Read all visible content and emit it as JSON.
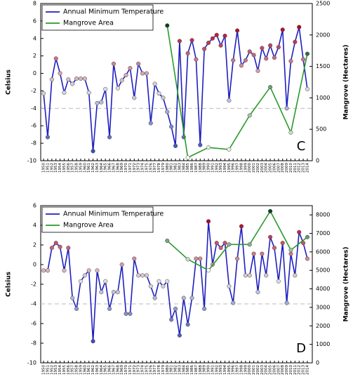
{
  "chart_data": [
    {
      "type": "line",
      "panel_label": "C",
      "ylabel": "Celsius",
      "y2label": "Mangrove (Hectares)",
      "x": [
        1950,
        1951,
        1952,
        1953,
        1954,
        1955,
        1956,
        1957,
        1958,
        1959,
        1960,
        1961,
        1962,
        1963,
        1964,
        1965,
        1966,
        1967,
        1968,
        1969,
        1970,
        1971,
        1972,
        1973,
        1974,
        1975,
        1976,
        1977,
        1978,
        1979,
        1980,
        1981,
        1982,
        1983,
        1984,
        1985,
        1986,
        1987,
        1988,
        1989,
        1990,
        1991,
        1992,
        1993,
        1994,
        1995,
        1996,
        1997,
        1998,
        1999,
        2000,
        2001,
        2002,
        2003,
        2004,
        2005,
        2006,
        2007,
        2008,
        2009,
        2010,
        2011,
        2012,
        2013,
        2014
      ],
      "xlim": [
        1949.3,
        2015.2
      ],
      "ylim": [
        -10,
        8
      ],
      "yticks": [
        -10,
        -8,
        -6,
        -4,
        -2,
        0,
        2,
        4,
        6,
        8
      ],
      "y2lim": [
        0,
        2500
      ],
      "y2ticks": [
        0,
        500,
        1000,
        1500,
        2000,
        2500
      ],
      "hline": -4,
      "legend": "upper left",
      "series": [
        {
          "name": "Annual Minimum Temperature",
          "color": "#1f1fbf",
          "marker_colormap": "coolwarm",
          "values": [
            -2.3,
            -7.3,
            -0.7,
            1.7,
            0,
            -2.2,
            -0.7,
            -1.2,
            -0.6,
            -0.6,
            -0.6,
            -2.2,
            -8.9,
            -3.4,
            -3.3,
            -1.8,
            -7.3,
            1.1,
            -1.7,
            -0.8,
            -0.2,
            0.6,
            -2.8,
            1.1,
            0,
            0,
            -5.7,
            -1.2,
            -2.3,
            -2.8,
            -4.4,
            -6.1,
            -8.3,
            3.7,
            -7.3,
            2.3,
            3.8,
            1.6,
            -8.2,
            2.8,
            3.5,
            4.0,
            4.4,
            3.2,
            4.3,
            -3.1,
            1.5,
            4.9,
            0.9,
            1.5,
            2.5,
            2.1,
            0.3,
            2.9,
            1.7,
            3.2,
            1.8,
            3.0,
            5.0,
            -4.0,
            1.4,
            3.6,
            5.3,
            1.6,
            -1.8
          ]
        },
        {
          "name": "Mangrove Area",
          "color": "#2a9a2a",
          "axis": "y2",
          "marker_colormap": "greens",
          "x": [
            1980,
            1985,
            1990,
            1995,
            2000,
            2005,
            2010,
            2014
          ],
          "values": [
            2150,
            50,
            210,
            180,
            720,
            1170,
            450,
            1700
          ]
        }
      ]
    },
    {
      "type": "line",
      "panel_label": "D",
      "ylabel": "Celsius",
      "y2label": "Mangrove (Hectares)",
      "x": [
        1950,
        1951,
        1952,
        1953,
        1954,
        1955,
        1956,
        1957,
        1958,
        1959,
        1960,
        1961,
        1962,
        1963,
        1964,
        1965,
        1966,
        1967,
        1968,
        1969,
        1970,
        1971,
        1972,
        1973,
        1974,
        1975,
        1976,
        1977,
        1978,
        1979,
        1980,
        1981,
        1982,
        1983,
        1984,
        1985,
        1986,
        1987,
        1988,
        1989,
        1990,
        1991,
        1992,
        1993,
        1994,
        1995,
        1996,
        1997,
        1998,
        1999,
        2000,
        2001,
        2002,
        2003,
        2004,
        2005,
        2006,
        2007,
        2008,
        2009,
        2010,
        2011,
        2012,
        2013,
        2014
      ],
      "xlim": [
        1949.3,
        2015.2
      ],
      "ylim": [
        -10,
        6
      ],
      "yticks": [
        -10,
        -8,
        -6,
        -4,
        -2,
        0,
        2,
        4,
        6
      ],
      "y2lim": [
        0,
        8500
      ],
      "y2ticks": [
        0,
        1000,
        2000,
        3000,
        4000,
        5000,
        6000,
        7000,
        8000
      ],
      "hline": -4,
      "legend": "upper left",
      "series": [
        {
          "name": "Annual Minimum Temperature",
          "color": "#1f1fbf",
          "marker_colormap": "coolwarm",
          "values": [
            -0.6,
            -0.6,
            1.7,
            2.2,
            1.8,
            -0.6,
            1.7,
            -3.4,
            -4.5,
            -1.7,
            -1.1,
            -0.6,
            -7.8,
            -0.6,
            -2.8,
            -1.7,
            -4.5,
            -2.8,
            -2.8,
            0,
            -5.0,
            -5.0,
            0.6,
            -1.1,
            -1.1,
            -1.1,
            -2.2,
            -3.4,
            -1.7,
            -2.2,
            -1.7,
            -5.6,
            -4.5,
            -7.2,
            -3.4,
            -6.1,
            -3.4,
            0.6,
            0.6,
            -4.5,
            4.4,
            0,
            2.2,
            1.7,
            2.2,
            -2.2,
            -3.9,
            0.6,
            3.9,
            -1.1,
            -1.1,
            1.1,
            -2.8,
            1.1,
            -1.1,
            2.8,
            1.7,
            -1.7,
            2.2,
            -3.9,
            1.1,
            -1.1,
            3.3,
            2.2,
            0.6
          ]
        },
        {
          "name": "Mangrove Area",
          "color": "#2a9a2a",
          "axis": "y2",
          "marker_colormap": "greens",
          "x": [
            1980,
            1985,
            1990,
            1995,
            2000,
            2005,
            2010,
            2014
          ],
          "values": [
            6600,
            5600,
            5000,
            6400,
            6400,
            8200,
            6100,
            6800
          ]
        }
      ]
    }
  ]
}
